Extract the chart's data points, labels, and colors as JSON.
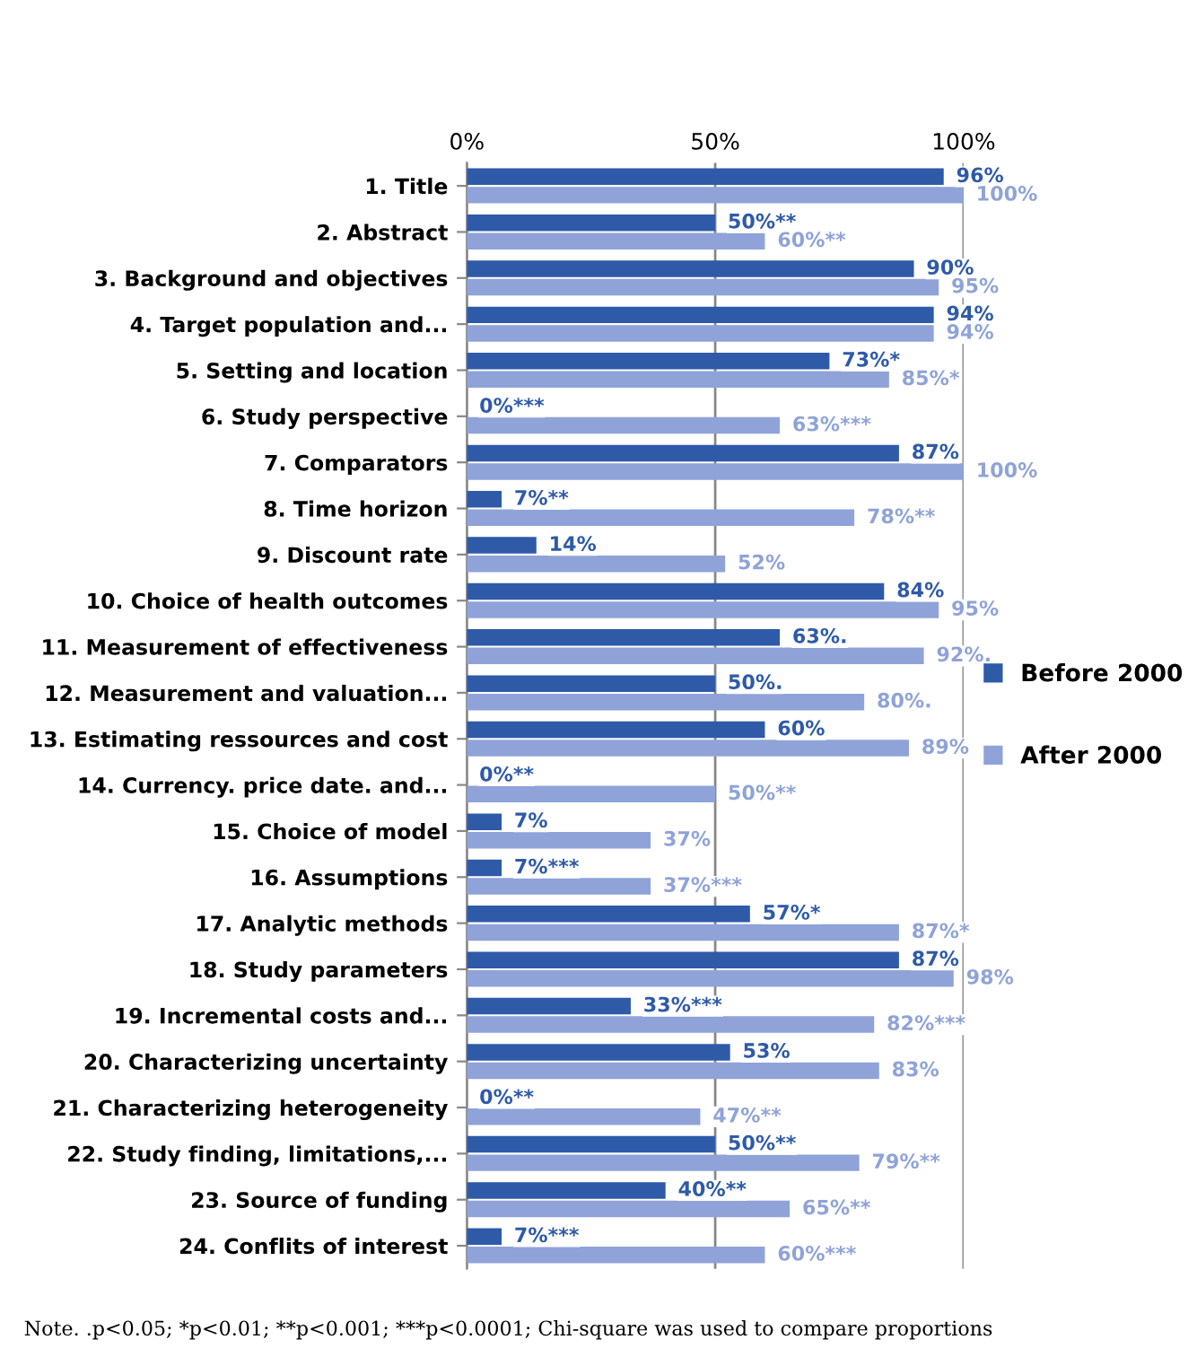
{
  "chart_data": {
    "type": "bar",
    "orientation": "horizontal",
    "categories": [
      "1. Title",
      "2. Abstract",
      "3. Background and objectives",
      "4. Target population and...",
      "5. Setting and location",
      "6. Study perspective",
      "7. Comparators",
      "8. Time horizon",
      "9. Discount rate",
      "10. Choice of health outcomes",
      "11. Measurement of effectiveness",
      "12. Measurement and valuation...",
      "13. Estimating ressources and cost",
      "14. Currency. price date. and...",
      "15. Choice of model",
      "16. Assumptions",
      "17. Analytic methods",
      "18. Study parameters",
      "19. Incremental costs and...",
      "20. Characterizing uncertainty",
      "21. Characterizing heterogeneity",
      "22. Study finding, limitations,...",
      "23. Source of funding",
      "24. Conflits of interest"
    ],
    "series": [
      {
        "name": "Before 2000",
        "color": "#2e5aa8",
        "values": [
          96,
          50,
          90,
          94,
          73,
          0,
          87,
          7,
          14,
          84,
          63,
          50,
          60,
          0,
          7,
          7,
          57,
          87,
          33,
          53,
          0,
          50,
          40,
          7
        ],
        "value_labels": [
          "96%",
          "50%**",
          "90%",
          "94%",
          "73%*",
          "0%***",
          "87%",
          "7%**",
          "14%",
          "84%",
          "63%.",
          "50%.",
          "60%",
          "0%**",
          "7%",
          "7%***",
          "57%*",
          "87%",
          "33%***",
          "53%",
          "0%**",
          "50%**",
          "40%**",
          "7%***"
        ]
      },
      {
        "name": "After 2000",
        "color": "#8fa3d8",
        "values": [
          100,
          60,
          95,
          94,
          85,
          63,
          100,
          78,
          52,
          95,
          92,
          80,
          89,
          50,
          37,
          37,
          87,
          98,
          82,
          83,
          47,
          79,
          65,
          60
        ],
        "value_labels": [
          "100%",
          "60%**",
          "95%",
          "94%",
          "85%*",
          "63%***",
          "100%",
          "78%**",
          "52%",
          "95%",
          "92%.",
          "80%.",
          "89%",
          "50%**",
          "37%",
          "37%***",
          "87%*",
          "98%",
          "82%***",
          "83%",
          "47%**",
          "79%**",
          "65%**",
          "60%***"
        ]
      }
    ],
    "xlim": [
      0,
      100
    ],
    "xticks": [
      {
        "value": 0,
        "label": "0%"
      },
      {
        "value": 50,
        "label": "50%"
      },
      {
        "value": 100,
        "label": "100%"
      }
    ],
    "grid": "x",
    "legend": "right",
    "annotations": [
      "Note. .p<0.05; *p<0.01; **p<0.001; ***p<0.0001; Chi-square was used to compare proportions"
    ]
  }
}
